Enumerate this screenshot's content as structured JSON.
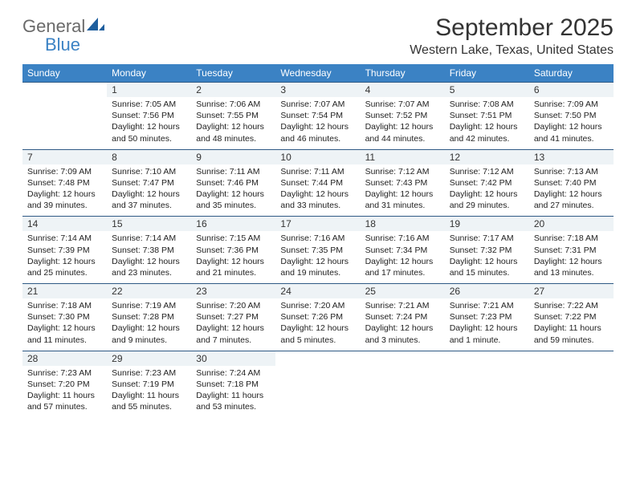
{
  "logo": {
    "word1": "General",
    "word2": "Blue"
  },
  "header": {
    "title": "September 2025",
    "location": "Western Lake, Texas, United States"
  },
  "colors": {
    "header_bg": "#3b82c4",
    "header_text": "#ffffff",
    "daynum_bg": "#eef3f6",
    "row_border": "#2f5a85",
    "logo_gray": "#6a6a6a",
    "logo_blue": "#3b82c4"
  },
  "weekdays": [
    "Sunday",
    "Monday",
    "Tuesday",
    "Wednesday",
    "Thursday",
    "Friday",
    "Saturday"
  ],
  "weeks": [
    [
      null,
      {
        "d": "1",
        "sr": "Sunrise: 7:05 AM",
        "ss": "Sunset: 7:56 PM",
        "dl": "Daylight: 12 hours and 50 minutes."
      },
      {
        "d": "2",
        "sr": "Sunrise: 7:06 AM",
        "ss": "Sunset: 7:55 PM",
        "dl": "Daylight: 12 hours and 48 minutes."
      },
      {
        "d": "3",
        "sr": "Sunrise: 7:07 AM",
        "ss": "Sunset: 7:54 PM",
        "dl": "Daylight: 12 hours and 46 minutes."
      },
      {
        "d": "4",
        "sr": "Sunrise: 7:07 AM",
        "ss": "Sunset: 7:52 PM",
        "dl": "Daylight: 12 hours and 44 minutes."
      },
      {
        "d": "5",
        "sr": "Sunrise: 7:08 AM",
        "ss": "Sunset: 7:51 PM",
        "dl": "Daylight: 12 hours and 42 minutes."
      },
      {
        "d": "6",
        "sr": "Sunrise: 7:09 AM",
        "ss": "Sunset: 7:50 PM",
        "dl": "Daylight: 12 hours and 41 minutes."
      }
    ],
    [
      {
        "d": "7",
        "sr": "Sunrise: 7:09 AM",
        "ss": "Sunset: 7:48 PM",
        "dl": "Daylight: 12 hours and 39 minutes."
      },
      {
        "d": "8",
        "sr": "Sunrise: 7:10 AM",
        "ss": "Sunset: 7:47 PM",
        "dl": "Daylight: 12 hours and 37 minutes."
      },
      {
        "d": "9",
        "sr": "Sunrise: 7:11 AM",
        "ss": "Sunset: 7:46 PM",
        "dl": "Daylight: 12 hours and 35 minutes."
      },
      {
        "d": "10",
        "sr": "Sunrise: 7:11 AM",
        "ss": "Sunset: 7:44 PM",
        "dl": "Daylight: 12 hours and 33 minutes."
      },
      {
        "d": "11",
        "sr": "Sunrise: 7:12 AM",
        "ss": "Sunset: 7:43 PM",
        "dl": "Daylight: 12 hours and 31 minutes."
      },
      {
        "d": "12",
        "sr": "Sunrise: 7:12 AM",
        "ss": "Sunset: 7:42 PM",
        "dl": "Daylight: 12 hours and 29 minutes."
      },
      {
        "d": "13",
        "sr": "Sunrise: 7:13 AM",
        "ss": "Sunset: 7:40 PM",
        "dl": "Daylight: 12 hours and 27 minutes."
      }
    ],
    [
      {
        "d": "14",
        "sr": "Sunrise: 7:14 AM",
        "ss": "Sunset: 7:39 PM",
        "dl": "Daylight: 12 hours and 25 minutes."
      },
      {
        "d": "15",
        "sr": "Sunrise: 7:14 AM",
        "ss": "Sunset: 7:38 PM",
        "dl": "Daylight: 12 hours and 23 minutes."
      },
      {
        "d": "16",
        "sr": "Sunrise: 7:15 AM",
        "ss": "Sunset: 7:36 PM",
        "dl": "Daylight: 12 hours and 21 minutes."
      },
      {
        "d": "17",
        "sr": "Sunrise: 7:16 AM",
        "ss": "Sunset: 7:35 PM",
        "dl": "Daylight: 12 hours and 19 minutes."
      },
      {
        "d": "18",
        "sr": "Sunrise: 7:16 AM",
        "ss": "Sunset: 7:34 PM",
        "dl": "Daylight: 12 hours and 17 minutes."
      },
      {
        "d": "19",
        "sr": "Sunrise: 7:17 AM",
        "ss": "Sunset: 7:32 PM",
        "dl": "Daylight: 12 hours and 15 minutes."
      },
      {
        "d": "20",
        "sr": "Sunrise: 7:18 AM",
        "ss": "Sunset: 7:31 PM",
        "dl": "Daylight: 12 hours and 13 minutes."
      }
    ],
    [
      {
        "d": "21",
        "sr": "Sunrise: 7:18 AM",
        "ss": "Sunset: 7:30 PM",
        "dl": "Daylight: 12 hours and 11 minutes."
      },
      {
        "d": "22",
        "sr": "Sunrise: 7:19 AM",
        "ss": "Sunset: 7:28 PM",
        "dl": "Daylight: 12 hours and 9 minutes."
      },
      {
        "d": "23",
        "sr": "Sunrise: 7:20 AM",
        "ss": "Sunset: 7:27 PM",
        "dl": "Daylight: 12 hours and 7 minutes."
      },
      {
        "d": "24",
        "sr": "Sunrise: 7:20 AM",
        "ss": "Sunset: 7:26 PM",
        "dl": "Daylight: 12 hours and 5 minutes."
      },
      {
        "d": "25",
        "sr": "Sunrise: 7:21 AM",
        "ss": "Sunset: 7:24 PM",
        "dl": "Daylight: 12 hours and 3 minutes."
      },
      {
        "d": "26",
        "sr": "Sunrise: 7:21 AM",
        "ss": "Sunset: 7:23 PM",
        "dl": "Daylight: 12 hours and 1 minute."
      },
      {
        "d": "27",
        "sr": "Sunrise: 7:22 AM",
        "ss": "Sunset: 7:22 PM",
        "dl": "Daylight: 11 hours and 59 minutes."
      }
    ],
    [
      {
        "d": "28",
        "sr": "Sunrise: 7:23 AM",
        "ss": "Sunset: 7:20 PM",
        "dl": "Daylight: 11 hours and 57 minutes."
      },
      {
        "d": "29",
        "sr": "Sunrise: 7:23 AM",
        "ss": "Sunset: 7:19 PM",
        "dl": "Daylight: 11 hours and 55 minutes."
      },
      {
        "d": "30",
        "sr": "Sunrise: 7:24 AM",
        "ss": "Sunset: 7:18 PM",
        "dl": "Daylight: 11 hours and 53 minutes."
      },
      null,
      null,
      null,
      null
    ]
  ]
}
